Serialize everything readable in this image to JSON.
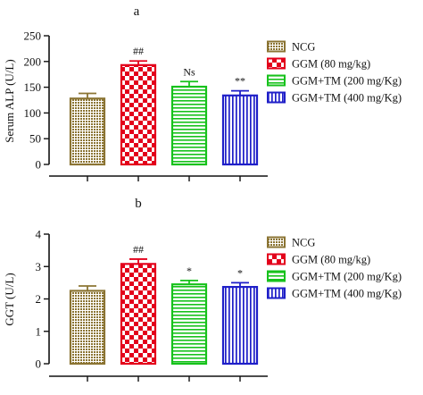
{
  "chart_data": [
    {
      "type": "bar",
      "title": "a",
      "ylabel": "Serum ALP (U/L)",
      "xlabel": "",
      "ylim": [
        0,
        250
      ],
      "yticks": [
        0,
        50,
        100,
        150,
        200,
        250
      ],
      "ytick_labels": [
        "0",
        "50",
        "100",
        "150",
        "200",
        "250"
      ],
      "categories": [
        "NCG",
        "GGM (80 mg/kg)",
        "GGM+TM (200 mg/Kg)",
        "GGM+TM (400 mg/Kg)"
      ],
      "values": [
        128,
        193,
        151,
        134
      ],
      "errors": [
        10,
        8,
        10,
        9
      ],
      "annotations": [
        "",
        "##",
        "Ns",
        "**"
      ],
      "legend_position": "right"
    },
    {
      "type": "bar",
      "title": "b",
      "ylabel": "GGT (U/L)",
      "xlabel": "",
      "ylim": [
        0,
        4
      ],
      "yticks": [
        0,
        1,
        2,
        3,
        4
      ],
      "ytick_labels": [
        "0",
        "1",
        "2",
        "3",
        "4"
      ],
      "categories": [
        "NCG",
        "GGM (80 mg/kg)",
        "GGM+TM (200 mg/Kg)",
        "GGM+TM (400 mg/Kg)"
      ],
      "values": [
        2.25,
        3.08,
        2.45,
        2.37
      ],
      "errors": [
        0.15,
        0.15,
        0.12,
        0.13
      ],
      "annotations": [
        "",
        "##",
        "*",
        "*"
      ],
      "legend_position": "right"
    }
  ],
  "series_style": [
    {
      "pattern": "dots",
      "stroke": "#8b7433",
      "fill_bg": "#ffffff"
    },
    {
      "pattern": "checker",
      "stroke": "#e3001b",
      "fill_bg": "#ffffff"
    },
    {
      "pattern": "hlines",
      "stroke": "#17c21c",
      "fill_bg": "#ffffff"
    },
    {
      "pattern": "vlines",
      "stroke": "#1f1fc8",
      "fill_bg": "#ffffff"
    }
  ]
}
